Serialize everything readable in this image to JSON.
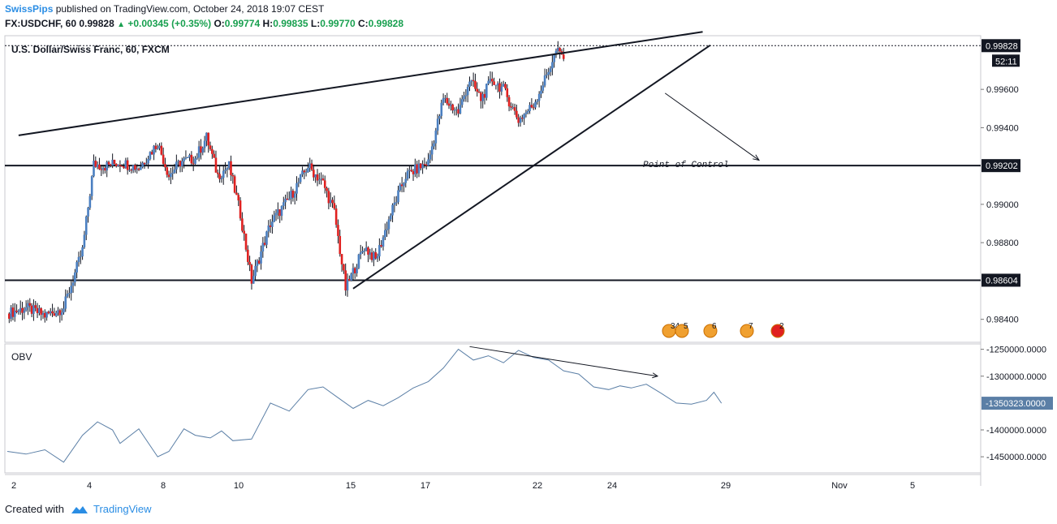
{
  "header": {
    "author": "SwissPips",
    "published_text": "published on TradingView.com, October 24, 2018 19:07 CEST",
    "symbol": "FX:USDCHF, 60",
    "last": "0.99828",
    "change_arrow": "▲",
    "change": "+0.00345 (+0.35%)",
    "o_label": "O:",
    "o_value": "0.99774",
    "h_label": "H:",
    "h_value": "0.99835",
    "l_label": "L:",
    "l_value": "0.99770",
    "c_label": "C:",
    "c_value": "0.99828"
  },
  "footer": {
    "created_with": "Created with",
    "brand": "TradingView"
  },
  "colors": {
    "up": "#4a7fc1",
    "down": "#e0201f",
    "obv": "#5b7fa6",
    "accent": "#2a8de4"
  },
  "chart_data": [
    {
      "type": "candlestick",
      "title": "U.S. Dollar/Swiss Franc, 60, FXCM",
      "ylim": [
        0.9828,
        0.9988
      ],
      "y_ticks": [
        "0.98400",
        "0.98800",
        "0.99000",
        "0.99400",
        "0.99600"
      ],
      "y_tick_values": [
        0.984,
        0.988,
        0.99,
        0.994,
        0.996
      ],
      "highlighted_levels": [
        {
          "label": "0.99828",
          "value": 0.99828,
          "style": "dotted"
        },
        {
          "label": "0.99202",
          "value": 0.99202,
          "style": "solid"
        },
        {
          "label": "0.98604",
          "value": 0.98604,
          "style": "solid"
        }
      ],
      "countdown": "52:11",
      "x_ticks": [
        "2",
        "4",
        "8",
        "10",
        "15",
        "17",
        "22",
        "24",
        "29",
        "Nov",
        "5"
      ],
      "x_tick_index": [
        0,
        2,
        4,
        5,
        8,
        9,
        12,
        13,
        16,
        17,
        19
      ],
      "price_path": [
        [
          0,
          0.9843
        ],
        [
          0.5,
          0.9846
        ],
        [
          1,
          0.9842
        ],
        [
          1.5,
          0.9846
        ],
        [
          2,
          0.9876
        ],
        [
          2.3,
          0.9921
        ],
        [
          2.6,
          0.992
        ],
        [
          3,
          0.9922
        ],
        [
          3.5,
          0.9919
        ],
        [
          4,
          0.9932
        ],
        [
          4.3,
          0.9915
        ],
        [
          4.6,
          0.9922
        ],
        [
          5,
          0.9924
        ],
        [
          5.3,
          0.9935
        ],
        [
          5.6,
          0.9915
        ],
        [
          5.9,
          0.992
        ],
        [
          6.2,
          0.9895
        ],
        [
          6.5,
          0.986
        ],
        [
          7,
          0.989
        ],
        [
          7.5,
          0.9903
        ],
        [
          8,
          0.992
        ],
        [
          8.4,
          0.9911
        ],
        [
          8.7,
          0.9896
        ],
        [
          9,
          0.9856
        ],
        [
          9.5,
          0.9878
        ],
        [
          9.8,
          0.9871
        ],
        [
          10.2,
          0.9895
        ],
        [
          10.6,
          0.9915
        ],
        [
          11.2,
          0.9922
        ],
        [
          11.6,
          0.9955
        ],
        [
          12,
          0.9948
        ],
        [
          12.3,
          0.9965
        ],
        [
          12.6,
          0.9955
        ],
        [
          12.9,
          0.9965
        ],
        [
          13.2,
          0.996
        ],
        [
          13.6,
          0.9944
        ],
        [
          14,
          0.9952
        ],
        [
          14.3,
          0.9965
        ],
        [
          14.6,
          0.998
        ],
        [
          14.8,
          0.9977
        ]
      ],
      "annotations": [
        {
          "text": "Point of Control"
        }
      ],
      "trendlines": [
        {
          "name": "upper",
          "from": [
            0.3,
            0.9936
          ],
          "to": [
            18.5,
            0.999
          ]
        },
        {
          "name": "lower",
          "from": [
            9.2,
            0.9856
          ],
          "to": [
            18.7,
            0.9983
          ]
        },
        {
          "name": "arrow",
          "from": [
            17.5,
            0.9958
          ],
          "to": [
            20.0,
            0.9923
          ]
        }
      ],
      "events": [
        {
          "flag": "US",
          "count": "34"
        },
        {
          "flag": "US",
          "count": "5"
        },
        {
          "flag": "US",
          "count": "6"
        },
        {
          "flag": "US",
          "count": "7"
        },
        {
          "flag": "CH",
          "count": "2"
        }
      ]
    },
    {
      "type": "line",
      "title": "OBV",
      "ylim": [
        -1480000,
        -1240000
      ],
      "y_ticks": [
        "-1250000.0000",
        "-1300000.0000",
        "-1400000.0000",
        "-1450000.0000"
      ],
      "y_tick_values": [
        -1250000,
        -1300000,
        -1400000,
        -1450000
      ],
      "last_label": "-1350323.0000",
      "last_value": -1350323,
      "series": [
        {
          "values": [
            [
              0,
              -1440000
            ],
            [
              0.5,
              -1445000
            ],
            [
              1,
              -1437000
            ],
            [
              1.5,
              -1460000
            ],
            [
              2,
              -1410000
            ],
            [
              2.4,
              -1385000
            ],
            [
              2.8,
              -1400000
            ],
            [
              3,
              -1425000
            ],
            [
              3.5,
              -1398000
            ],
            [
              4,
              -1450000
            ],
            [
              4.3,
              -1440000
            ],
            [
              4.7,
              -1398000
            ],
            [
              5,
              -1410000
            ],
            [
              5.4,
              -1415000
            ],
            [
              5.7,
              -1402000
            ],
            [
              6,
              -1420000
            ],
            [
              6.5,
              -1417000
            ],
            [
              7,
              -1350000
            ],
            [
              7.5,
              -1365000
            ],
            [
              8,
              -1325000
            ],
            [
              8.4,
              -1320000
            ],
            [
              8.8,
              -1340000
            ],
            [
              9.2,
              -1360000
            ],
            [
              9.6,
              -1345000
            ],
            [
              10,
              -1355000
            ],
            [
              10.4,
              -1340000
            ],
            [
              10.8,
              -1322000
            ],
            [
              11.2,
              -1310000
            ],
            [
              11.6,
              -1285000
            ],
            [
              12,
              -1250000
            ],
            [
              12.4,
              -1270000
            ],
            [
              12.8,
              -1262000
            ],
            [
              13.2,
              -1275000
            ],
            [
              13.6,
              -1252000
            ],
            [
              14,
              -1265000
            ],
            [
              14.4,
              -1270000
            ],
            [
              14.8,
              -1290000
            ],
            [
              15.2,
              -1296000
            ],
            [
              15.6,
              -1320000
            ],
            [
              16,
              -1325000
            ],
            [
              16.3,
              -1318000
            ],
            [
              16.6,
              -1322000
            ],
            [
              17,
              -1315000
            ],
            [
              17.4,
              -1332000
            ],
            [
              17.8,
              -1350000
            ],
            [
              18.2,
              -1352000
            ],
            [
              18.6,
              -1345000
            ],
            [
              18.8,
              -1330000
            ],
            [
              19,
              -1350323
            ]
          ]
        }
      ],
      "trendlines": [
        {
          "name": "obv-down",
          "from": [
            12.3,
            -1245000
          ],
          "to": [
            17.3,
            -1300000
          ]
        }
      ]
    }
  ]
}
